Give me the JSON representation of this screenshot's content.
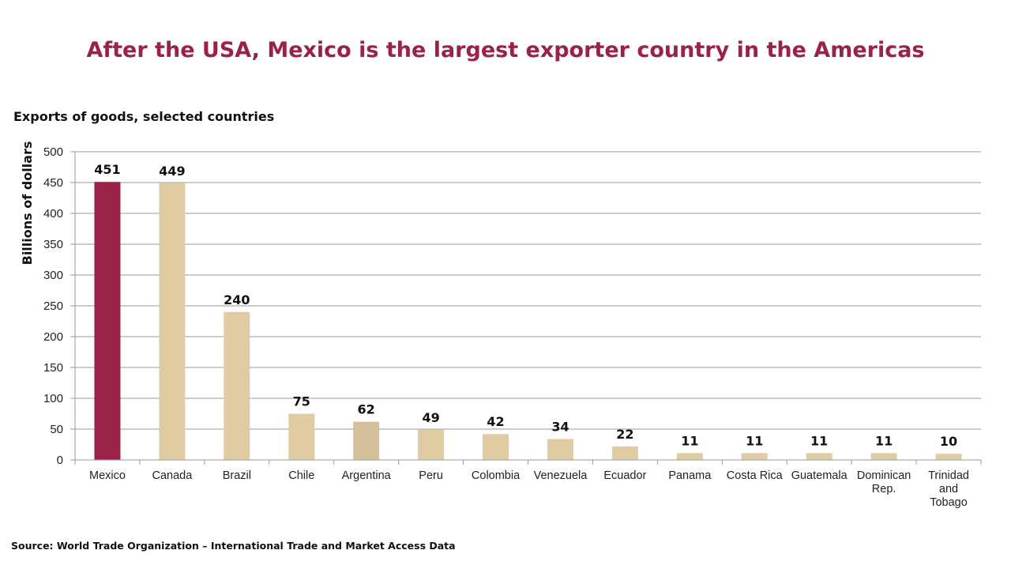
{
  "title": "After the USA, Mexico is the largest exporter country in the Americas",
  "subtitle": "Exports of goods, selected countries",
  "source": "Source: World Trade Organization – International Trade and Market Access Data",
  "colors": {
    "highlight": "#9B2247",
    "bar": "#E0CBA3",
    "bar_alt": "#D4C19C",
    "grid": "#9a9a9a",
    "title": "#9B2247"
  },
  "chart_data": {
    "type": "bar",
    "ylabel": "Billions of dollars",
    "xlabel": "",
    "ylim": [
      0,
      500
    ],
    "yticks": [
      0,
      50,
      100,
      150,
      200,
      250,
      300,
      350,
      400,
      450,
      500
    ],
    "grid": true,
    "categories": [
      [
        "Mexico"
      ],
      [
        "Canada"
      ],
      [
        "Brazil"
      ],
      [
        "Chile"
      ],
      [
        "Argentina"
      ],
      [
        "Peru"
      ],
      [
        "Colombia"
      ],
      [
        "Venezuela"
      ],
      [
        "Ecuador"
      ],
      [
        "Panama"
      ],
      [
        "Costa Rica"
      ],
      [
        "Guatemala"
      ],
      [
        "Dominican",
        "Rep."
      ],
      [
        "Trinidad",
        "and",
        "Tobago"
      ]
    ],
    "values": [
      451,
      449,
      240,
      75,
      62,
      49,
      42,
      34,
      22,
      11,
      11,
      11,
      11,
      10
    ],
    "value_labels": [
      "451",
      "449",
      "240",
      "75",
      "62",
      "49",
      "42",
      "34",
      "22",
      "11",
      "11",
      "11",
      "11",
      "10"
    ],
    "highlight_index": 0,
    "alt_index": 4
  }
}
